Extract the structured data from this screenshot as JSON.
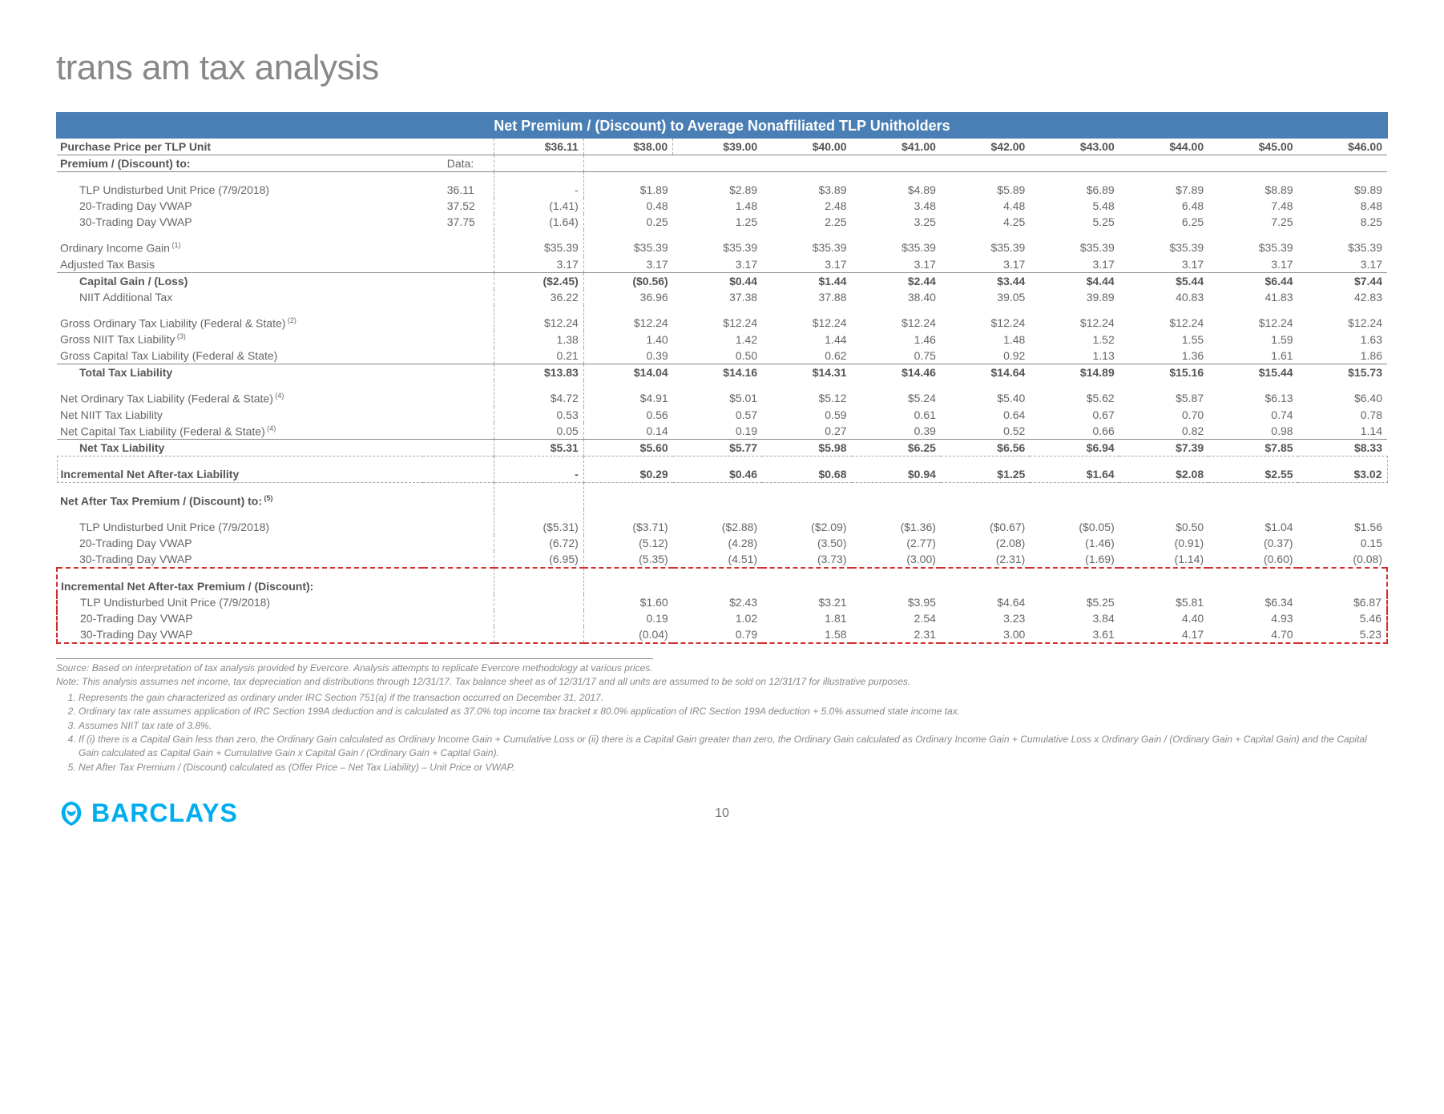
{
  "title": "trans am tax analysis",
  "table_header": "Net Premium / (Discount) to Average Nonaffiliated TLP Unitholders",
  "cols": {
    "purchase_label": "Purchase Price per TLP Unit",
    "data_label": "Data:",
    "premium_label": "Premium / (Discount) to:",
    "prices": [
      "$36.11",
      "$38.00",
      "$39.00",
      "$40.00",
      "$41.00",
      "$42.00",
      "$43.00",
      "$44.00",
      "$45.00",
      "$46.00"
    ]
  },
  "rows": [
    {
      "label": "TLP Undisturbed Unit Price (7/9/2018)",
      "data": "36.11",
      "v": [
        "-",
        "$1.89",
        "$2.89",
        "$3.89",
        "$4.89",
        "$5.89",
        "$6.89",
        "$7.89",
        "$8.89",
        "$9.89"
      ]
    },
    {
      "label": "20-Trading Day VWAP",
      "data": "37.52",
      "v": [
        "(1.41)",
        "0.48",
        "1.48",
        "2.48",
        "3.48",
        "4.48",
        "5.48",
        "6.48",
        "7.48",
        "8.48"
      ]
    },
    {
      "label": "30-Trading Day VWAP",
      "data": "37.75",
      "v": [
        "(1.64)",
        "0.25",
        "1.25",
        "2.25",
        "3.25",
        "4.25",
        "5.25",
        "6.25",
        "7.25",
        "8.25"
      ]
    }
  ],
  "ordinary": [
    {
      "label": "Ordinary Income Gain",
      "fn": "(1)",
      "v": [
        "$35.39",
        "$35.39",
        "$35.39",
        "$35.39",
        "$35.39",
        "$35.39",
        "$35.39",
        "$35.39",
        "$35.39",
        "$35.39"
      ]
    },
    {
      "label": "Adjusted Tax Basis",
      "v": [
        "3.17",
        "3.17",
        "3.17",
        "3.17",
        "3.17",
        "3.17",
        "3.17",
        "3.17",
        "3.17",
        "3.17"
      ]
    }
  ],
  "capital": [
    {
      "label": "Capital Gain / (Loss)",
      "bold": true,
      "v": [
        "($2.45)",
        "($0.56)",
        "$0.44",
        "$1.44",
        "$2.44",
        "$3.44",
        "$4.44",
        "$5.44",
        "$6.44",
        "$7.44"
      ]
    },
    {
      "label": "NIIT Additional Tax",
      "v": [
        "36.22",
        "36.96",
        "37.38",
        "37.88",
        "38.40",
        "39.05",
        "39.89",
        "40.83",
        "41.83",
        "42.83"
      ]
    }
  ],
  "gross": [
    {
      "label": "Gross Ordinary Tax Liability (Federal & State)",
      "fn": "(2)",
      "v": [
        "$12.24",
        "$12.24",
        "$12.24",
        "$12.24",
        "$12.24",
        "$12.24",
        "$12.24",
        "$12.24",
        "$12.24",
        "$12.24"
      ]
    },
    {
      "label": "Gross NIIT Tax Liability",
      "fn": "(3)",
      "v": [
        "1.38",
        "1.40",
        "1.42",
        "1.44",
        "1.46",
        "1.48",
        "1.52",
        "1.55",
        "1.59",
        "1.63"
      ]
    },
    {
      "label": "Gross Capital Tax Liability (Federal & State)",
      "v": [
        "0.21",
        "0.39",
        "0.50",
        "0.62",
        "0.75",
        "0.92",
        "1.13",
        "1.36",
        "1.61",
        "1.86"
      ]
    }
  ],
  "total_tax": {
    "label": "Total Tax Liability",
    "v": [
      "$13.83",
      "$14.04",
      "$14.16",
      "$14.31",
      "$14.46",
      "$14.64",
      "$14.89",
      "$15.16",
      "$15.44",
      "$15.73"
    ]
  },
  "net": [
    {
      "label": "Net Ordinary Tax Liability (Federal & State)",
      "fn": "(4)",
      "v": [
        "$4.72",
        "$4.91",
        "$5.01",
        "$5.12",
        "$5.24",
        "$5.40",
        "$5.62",
        "$5.87",
        "$6.13",
        "$6.40"
      ]
    },
    {
      "label": "Net NIIT Tax Liability",
      "v": [
        "0.53",
        "0.56",
        "0.57",
        "0.59",
        "0.61",
        "0.64",
        "0.67",
        "0.70",
        "0.74",
        "0.78"
      ]
    },
    {
      "label": "Net Capital Tax Liability (Federal & State)",
      "fn": "(4)",
      "v": [
        "0.05",
        "0.14",
        "0.19",
        "0.27",
        "0.39",
        "0.52",
        "0.66",
        "0.82",
        "0.98",
        "1.14"
      ]
    }
  ],
  "net_tax": {
    "label": "Net Tax Liability",
    "v": [
      "$5.31",
      "$5.60",
      "$5.77",
      "$5.98",
      "$6.25",
      "$6.56",
      "$6.94",
      "$7.39",
      "$7.85",
      "$8.33"
    ]
  },
  "inc_net": {
    "label": "Incremental Net After-tax Liability",
    "v": [
      "-",
      "$0.29",
      "$0.46",
      "$0.68",
      "$0.94",
      "$1.25",
      "$1.64",
      "$2.08",
      "$2.55",
      "$3.02"
    ]
  },
  "aftertax_hdr": "Net After Tax Premium / (Discount) to:",
  "aftertax": [
    {
      "label": "TLP Undisturbed Unit Price (7/9/2018)",
      "v": [
        "($5.31)",
        "($3.71)",
        "($2.88)",
        "($2.09)",
        "($1.36)",
        "($0.67)",
        "($0.05)",
        "$0.50",
        "$1.04",
        "$1.56"
      ]
    },
    {
      "label": "20-Trading Day VWAP",
      "v": [
        "(6.72)",
        "(5.12)",
        "(4.28)",
        "(3.50)",
        "(2.77)",
        "(2.08)",
        "(1.46)",
        "(0.91)",
        "(0.37)",
        "0.15"
      ]
    },
    {
      "label": "30-Trading Day VWAP",
      "v": [
        "(6.95)",
        "(5.35)",
        "(4.51)",
        "(3.73)",
        "(3.00)",
        "(2.31)",
        "(1.69)",
        "(1.14)",
        "(0.60)",
        "(0.08)"
      ]
    }
  ],
  "redbox_hdr": "Incremental Net After-tax Premium / (Discount):",
  "redbox": [
    {
      "label": "TLP Undisturbed Unit Price (7/9/2018)",
      "v": [
        "",
        "$1.60",
        "$2.43",
        "$3.21",
        "$3.95",
        "$4.64",
        "$5.25",
        "$5.81",
        "$6.34",
        "$6.87"
      ]
    },
    {
      "label": "20-Trading Day VWAP",
      "v": [
        "",
        "0.19",
        "1.02",
        "1.81",
        "2.54",
        "3.23",
        "3.84",
        "4.40",
        "4.93",
        "5.46"
      ]
    },
    {
      "label": "30-Trading Day VWAP",
      "v": [
        "",
        "(0.04)",
        "0.79",
        "1.58",
        "2.31",
        "3.00",
        "3.61",
        "4.17",
        "4.70",
        "5.23"
      ]
    }
  ],
  "footnotes": {
    "source": "Source: Based on interpretation of tax analysis provided by Evercore. Analysis attempts to replicate Evercore methodology at various prices.",
    "note": "Note: This analysis assumes net income, tax depreciation and distributions through 12/31/17. Tax balance sheet as of 12/31/17 and all units are assumed to be sold on 12/31/17 for illustrative purposes.",
    "items": [
      "Represents the gain characterized as ordinary under IRC Section 751(a) if the transaction occurred on December 31, 2017.",
      "Ordinary tax rate assumes application of IRC Section 199A deduction and is calculated as 37.0% top income tax bracket x 80.0% application of IRC Section 199A deduction + 5.0% assumed state income tax.",
      "Assumes NIIT tax rate of 3.8%.",
      "If (i) there is a Capital Gain less than zero, the Ordinary Gain calculated as Ordinary Income Gain + Cumulative Loss or (ii) there is a Capital Gain greater than zero, the Ordinary Gain calculated as Ordinary Income Gain + Cumulative Loss x Ordinary Gain / (Ordinary Gain + Capital Gain) and the Capital Gain calculated as Capital Gain + Cumulative Gain x Capital Gain / (Ordinary Gain + Capital Gain).",
      "Net After Tax Premium / (Discount) calculated as (Offer Price – Net Tax Liability) – Unit Price or VWAP."
    ]
  },
  "footer": {
    "logo": "BARCLAYS",
    "page": "10"
  },
  "colors": {
    "header_bg": "#4a7fb5",
    "title": "#888888",
    "logo": "#00aeef",
    "red": "#d32f2f"
  }
}
